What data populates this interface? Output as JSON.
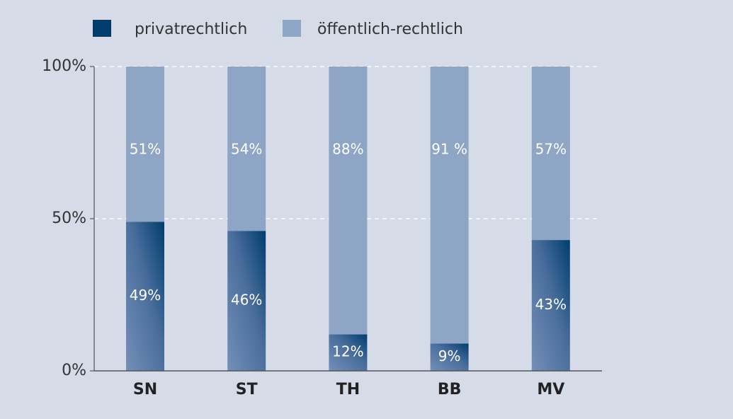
{
  "chart_data": {
    "type": "stacked_bar",
    "categories": [
      "SN",
      "ST",
      "TH",
      "BB",
      "MV"
    ],
    "series": [
      {
        "name": "privatrechtlich",
        "color": "#003d6e",
        "values": [
          49,
          46,
          12,
          9,
          43
        ],
        "value_labels": [
          "49%",
          "46%",
          "12%",
          "9%",
          "43%"
        ]
      },
      {
        "name": "öffentlich-rechtlich",
        "color": "#8fa5c5",
        "values": [
          51,
          54,
          88,
          91,
          57
        ],
        "value_labels": [
          "51%",
          "54%",
          "88%",
          "91 %",
          "57%"
        ]
      }
    ],
    "ylim": [
      0,
      100
    ],
    "yticks": [
      {
        "value": 0,
        "label": "0%"
      },
      {
        "value": 50,
        "label": "50%"
      },
      {
        "value": 100,
        "label": "100%"
      }
    ],
    "grid": true,
    "legend": "top-left"
  }
}
